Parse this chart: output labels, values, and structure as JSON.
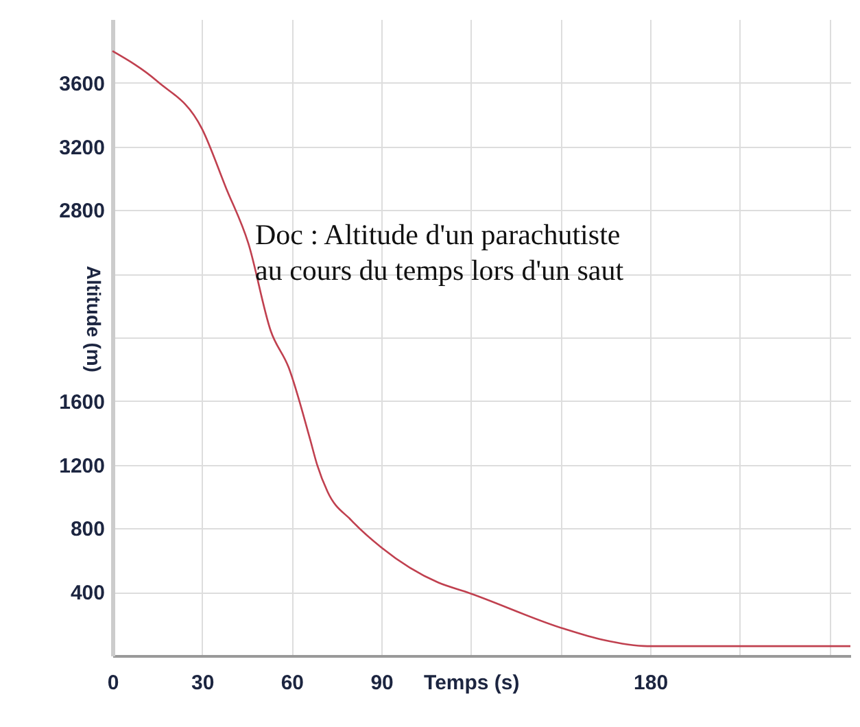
{
  "chart_data": {
    "type": "line",
    "xlabel": "Temps (s)",
    "ylabel": "Altitude (m)",
    "annotations": [
      "Doc : Altitude d'un parachutiste",
      "au cours du temps lors d'un saut"
    ],
    "x": [
      0,
      15,
      30,
      38,
      45.5,
      53,
      59,
      66,
      68.5,
      72,
      80,
      90,
      109,
      118.5,
      151,
      164,
      179,
      247
    ],
    "series": [
      {
        "color": "#c0404f",
        "values": [
          3800,
          3610,
          3310,
          2940,
          2590,
          2040,
          1810,
          1370,
          1200,
          1030,
          850,
          680,
          460,
          400,
          170,
          100,
          60,
          60
        ]
      }
    ],
    "xlim": [
      0,
      247
    ],
    "ylim": [
      0,
      4000
    ],
    "xticks": [
      0,
      30,
      60,
      90,
      {
        "value": 120,
        "label": null
      },
      {
        "value": 150,
        "label": null
      },
      180,
      {
        "value": 210,
        "label": null
      },
      {
        "value": 240,
        "label": null
      }
    ],
    "yticks": [
      {
        "value": 0,
        "label": null
      },
      400,
      800,
      1200,
      1600,
      {
        "value": 2000,
        "label": null
      },
      {
        "value": 2400,
        "label": null
      },
      2800,
      3200,
      3600
    ],
    "grid": true,
    "marker": "none",
    "line_style": "solid"
  }
}
